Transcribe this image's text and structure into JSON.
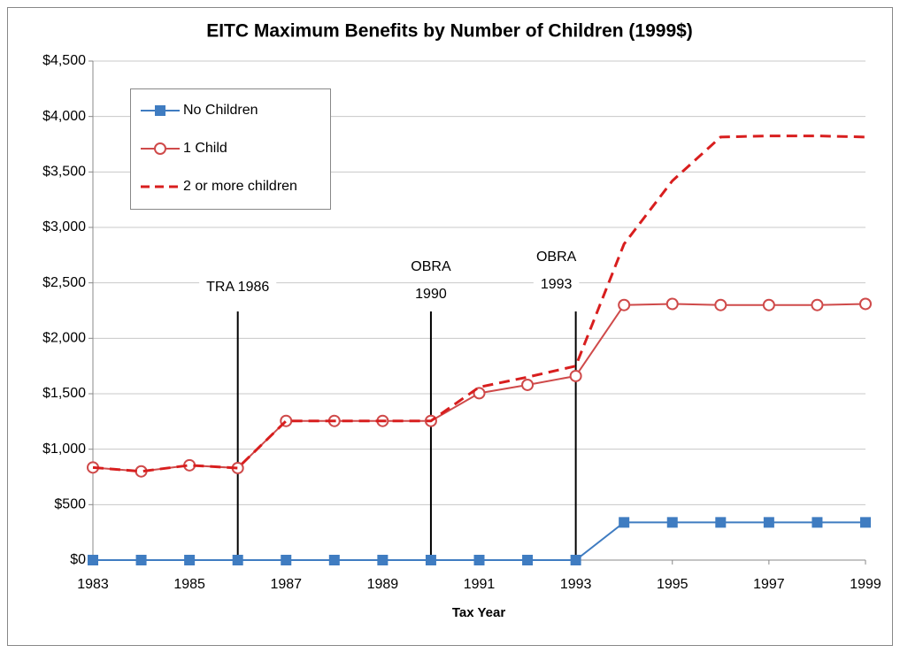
{
  "chart_data": {
    "type": "line",
    "title": "EITC Maximum Benefits by Number of Children (1999$)",
    "xlabel": "Tax Year",
    "x": [
      1983,
      1984,
      1985,
      1986,
      1987,
      1988,
      1989,
      1990,
      1991,
      1992,
      1993,
      1994,
      1995,
      1996,
      1997,
      1998,
      1999
    ],
    "series": [
      {
        "name": "No Children",
        "color": "#3f7cc1",
        "marker": "square",
        "values": [
          0,
          0,
          0,
          0,
          0,
          0,
          0,
          0,
          0,
          0,
          0,
          340,
          340,
          340,
          340,
          340,
          340
        ]
      },
      {
        "name": "1 Child",
        "color": "#cf4a4a",
        "marker": "circle",
        "values": [
          835,
          800,
          855,
          830,
          1255,
          1255,
          1255,
          1255,
          1505,
          1580,
          1660,
          2300,
          2310,
          2300,
          2300,
          2300,
          2310
        ]
      },
      {
        "name": "2 or more children",
        "color": "#d81e1e",
        "dashed": true,
        "values": [
          835,
          800,
          855,
          830,
          1255,
          1255,
          1255,
          1255,
          1560,
          1650,
          1750,
          2850,
          3420,
          3815,
          3825,
          3825,
          3815
        ]
      }
    ],
    "xlim": [
      1983,
      1999
    ],
    "xticks": [
      1983,
      1985,
      1987,
      1989,
      1991,
      1993,
      1995,
      1997,
      1999
    ],
    "ylim": [
      0,
      4500
    ],
    "yticks": [
      {
        "value": 0,
        "label": "$0"
      },
      {
        "value": 500,
        "label": "$500"
      },
      {
        "value": 1000,
        "label": "$1,000"
      },
      {
        "value": 1500,
        "label": "$1,500"
      },
      {
        "value": 2000,
        "label": "$2,000"
      },
      {
        "value": 2500,
        "label": "$2,500"
      },
      {
        "value": 3000,
        "label": "$3,000"
      },
      {
        "value": 3500,
        "label": "$3,500"
      },
      {
        "value": 4000,
        "label": "$4,000"
      },
      {
        "value": 4500,
        "label": "$4,500"
      }
    ],
    "grid": true,
    "legend": "upper left",
    "annotations": [
      {
        "lines": [
          "TRA 1986"
        ],
        "x": 1986
      },
      {
        "lines": [
          "OBRA",
          "1990"
        ],
        "x": 1990
      },
      {
        "lines": [
          "OBRA",
          "1993"
        ],
        "x": 1993
      }
    ]
  }
}
